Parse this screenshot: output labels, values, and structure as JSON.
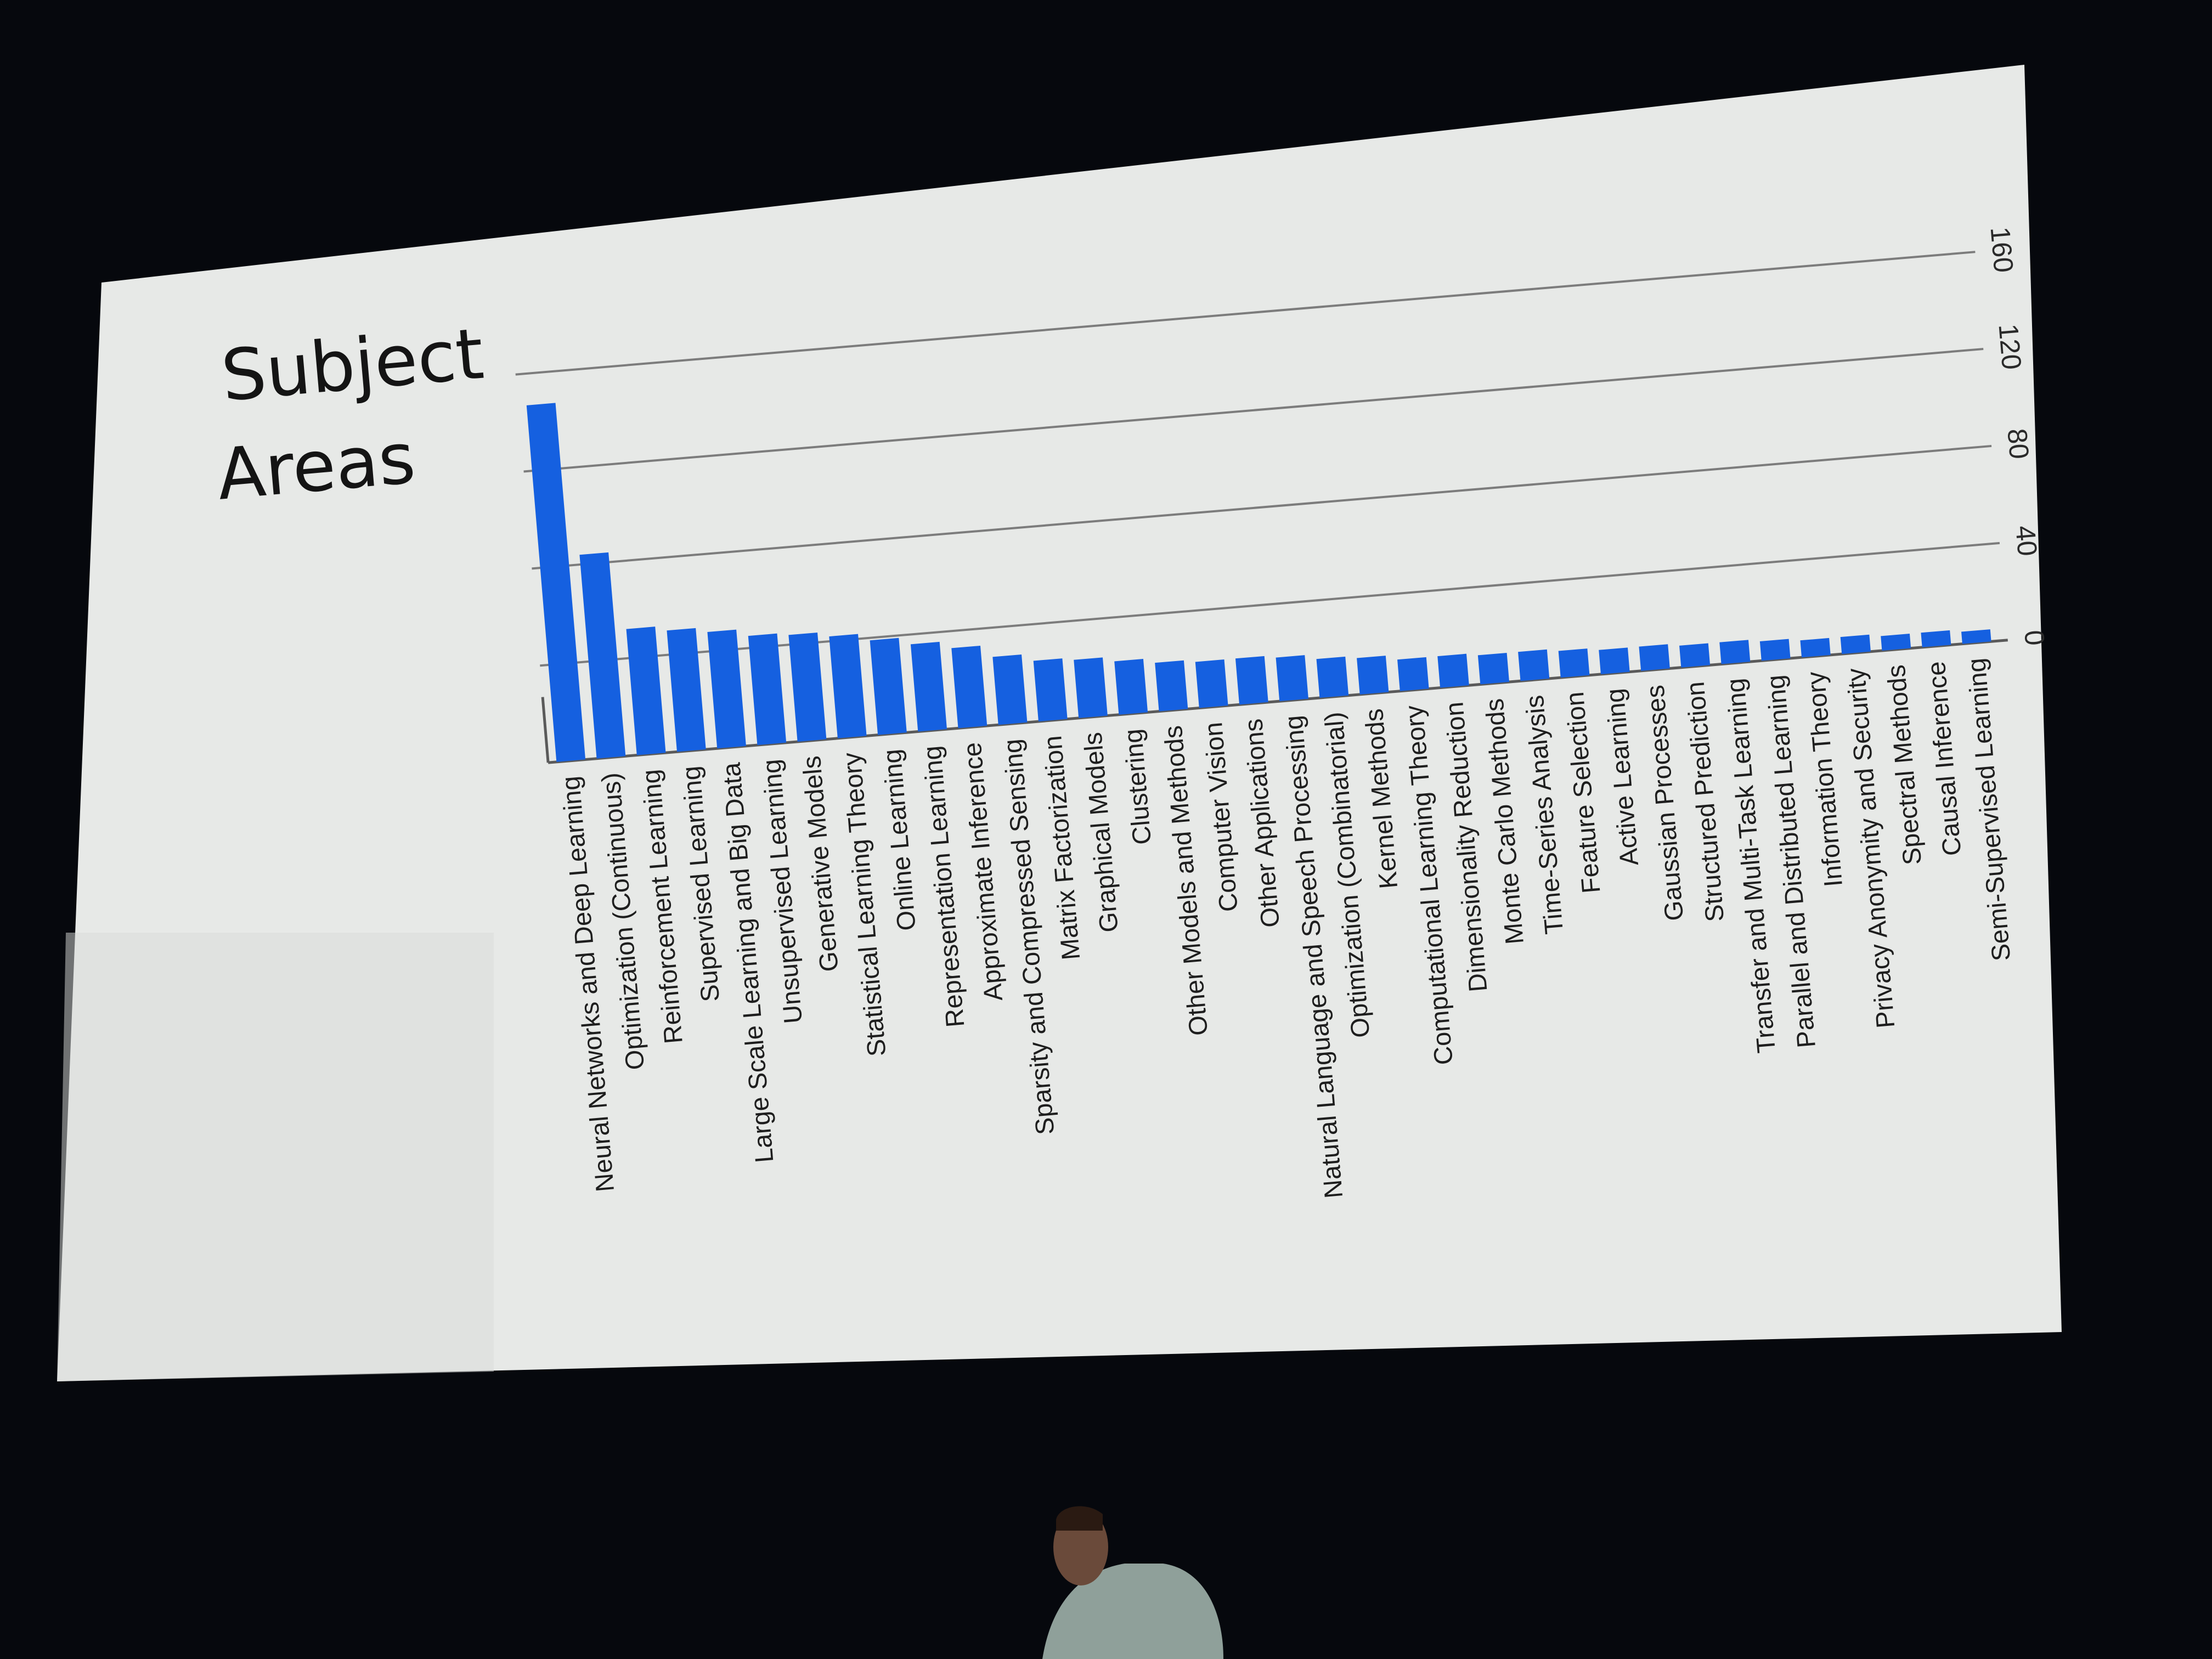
{
  "slide": {
    "title_line1": "Subject",
    "title_line2": "Areas"
  },
  "chart_data": {
    "type": "bar",
    "title": "Subject Areas",
    "xlabel": "",
    "ylabel": "",
    "ylim": [
      0,
      160
    ],
    "yticks": [
      0,
      40,
      80,
      120,
      160
    ],
    "grid": true,
    "legend": "none",
    "bar_color": "#1560e0",
    "categories": [
      "Neural Networks and Deep Learning",
      "Optimization (Continuous)",
      "Reinforcement Learning",
      "Supervised Learning",
      "Large Scale Learning and Big Data",
      "Unsupervised Learning",
      "Generative Models",
      "Statistical Learning Theory",
      "Online Learning",
      "Representation Learning",
      "Approximate Inference",
      "Sparsity and Compressed Sensing",
      "Matrix Factorization",
      "Graphical Models",
      "Clustering",
      "Other Models and Methods",
      "Computer Vision",
      "Other Applications",
      "Natural Language and Speech Processing",
      "Optimization (Combinatorial)",
      "Kernel Methods",
      "Computational Learning Theory",
      "Dimensionality Reduction",
      "Monte Carlo Methods",
      "Time-Series Analysis",
      "Feature Selection",
      "Active Learning",
      "Gaussian Processes",
      "Structured Prediction",
      "Transfer and Multi-Task Learning",
      "Parallel and Distributed Learning",
      "Information Theory",
      "Privacy Anonymity and Security",
      "Spectral Methods",
      "Causal Inference",
      "Semi-Supervised Learning"
    ],
    "values": [
      147,
      84,
      52,
      50,
      48,
      45,
      44,
      42,
      39,
      36,
      33,
      28,
      25,
      24,
      22,
      20,
      19,
      19,
      18,
      16,
      15,
      13,
      13,
      12,
      12,
      11,
      10,
      10,
      9,
      9,
      8,
      7,
      7,
      6,
      6,
      5
    ]
  }
}
